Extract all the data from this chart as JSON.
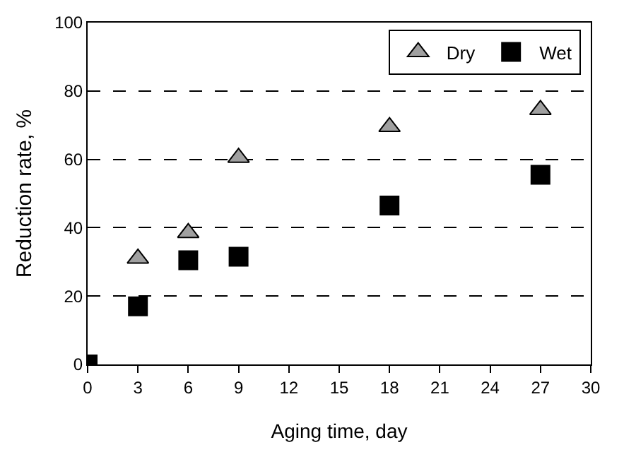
{
  "chart_data": {
    "type": "scatter",
    "xlabel": "Aging time, day",
    "ylabel": "Reduction rate, %",
    "xlim": [
      0,
      30
    ],
    "xticks": [
      0,
      3,
      6,
      9,
      12,
      15,
      18,
      21,
      24,
      27,
      30
    ],
    "ylim": [
      0,
      100
    ],
    "yticks": [
      0,
      20,
      40,
      60,
      80,
      100
    ],
    "grid": "y",
    "legend": "top right",
    "series": [
      {
        "name": "Dry",
        "color": "#a0a0a0",
        "marker": "triangle",
        "x": [
          3,
          6,
          9,
          18,
          27
        ],
        "values": [
          31,
          38.5,
          60.5,
          69.5,
          74.5
        ]
      },
      {
        "name": "Wet",
        "color": "#000000",
        "marker": "square",
        "x": [
          0,
          3,
          6,
          9,
          18,
          27
        ],
        "values": [
          0,
          17,
          30.5,
          31.5,
          46.5,
          55.5
        ]
      }
    ]
  }
}
